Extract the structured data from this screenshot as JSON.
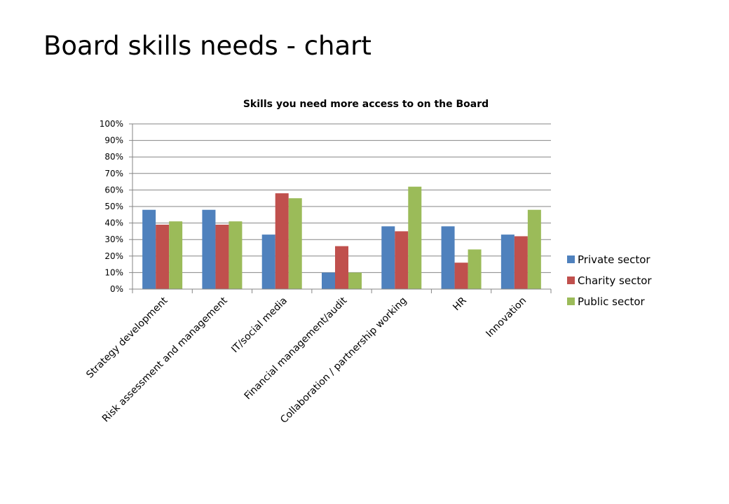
{
  "slide": {
    "title": "Board skills needs - chart"
  },
  "chart_data": {
    "type": "bar",
    "title": "Skills you need more access to on the Board",
    "xlabel": "",
    "ylabel": "",
    "ylim": [
      0,
      1
    ],
    "ytick_labels": [
      "0%",
      "10%",
      "20%",
      "30%",
      "40%",
      "50%",
      "60%",
      "70%",
      "80%",
      "90%",
      "100%"
    ],
    "grid": true,
    "legend_position": "right",
    "categories": [
      "Strategy development",
      "Risk assessment and management",
      "IT/social media",
      "Financial management/audit",
      "Collaboration / partnership working",
      "HR",
      "Innovation"
    ],
    "series": [
      {
        "name": "Private sector",
        "color": "#4F81BD",
        "values": [
          0.48,
          0.48,
          0.33,
          0.1,
          0.38,
          0.38,
          0.33
        ]
      },
      {
        "name": "Charity sector",
        "color": "#C0504D",
        "values": [
          0.39,
          0.39,
          0.58,
          0.26,
          0.35,
          0.16,
          0.32
        ]
      },
      {
        "name": "Public sector",
        "color": "#9BBB59",
        "values": [
          0.41,
          0.41,
          0.55,
          0.1,
          0.62,
          0.24,
          0.48
        ]
      }
    ]
  }
}
